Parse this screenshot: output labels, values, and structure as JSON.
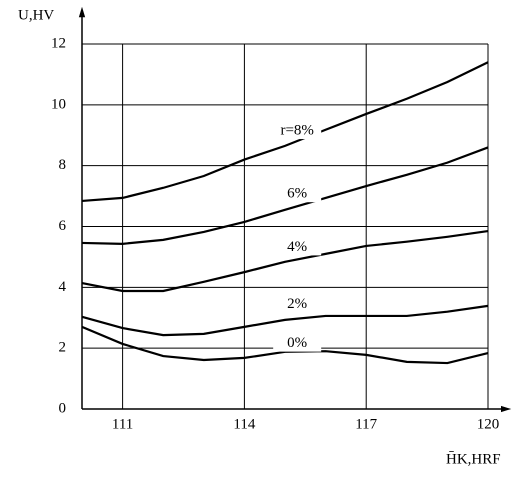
{
  "chart_data": {
    "type": "line",
    "ylabel": "U,HV",
    "xlabel": "H̄K,HRF",
    "x": [
      110,
      111,
      112,
      113,
      114,
      115,
      116,
      117,
      118,
      119,
      120
    ],
    "xlim": [
      110,
      120
    ],
    "xticks": [
      111,
      114,
      117,
      120
    ],
    "ylim": [
      0,
      12
    ],
    "yticks": [
      0,
      2,
      4,
      6,
      8,
      10,
      12
    ],
    "grid": true,
    "series": [
      {
        "name": "r=8%",
        "color": "#000000",
        "values": [
          6.84,
          6.94,
          7.27,
          7.66,
          8.2,
          8.65,
          9.18,
          9.7,
          10.2,
          10.75,
          11.4
        ]
      },
      {
        "name": "6%",
        "color": "#000000",
        "values": [
          5.46,
          5.43,
          5.56,
          5.82,
          6.15,
          6.55,
          6.94,
          7.33,
          7.7,
          8.1,
          8.6
        ]
      },
      {
        "name": "4%",
        "color": "#000000",
        "values": [
          4.14,
          3.88,
          3.88,
          4.18,
          4.5,
          4.84,
          5.1,
          5.36,
          5.5,
          5.66,
          5.85
        ]
      },
      {
        "name": "2%",
        "color": "#000000",
        "values": [
          3.03,
          2.66,
          2.43,
          2.47,
          2.7,
          2.93,
          3.06,
          3.06,
          3.06,
          3.2,
          3.39
        ]
      },
      {
        "name": "0%",
        "color": "#000000",
        "values": [
          2.7,
          2.14,
          1.74,
          1.61,
          1.68,
          1.88,
          1.9,
          1.78,
          1.55,
          1.51,
          1.84
        ]
      }
    ]
  }
}
